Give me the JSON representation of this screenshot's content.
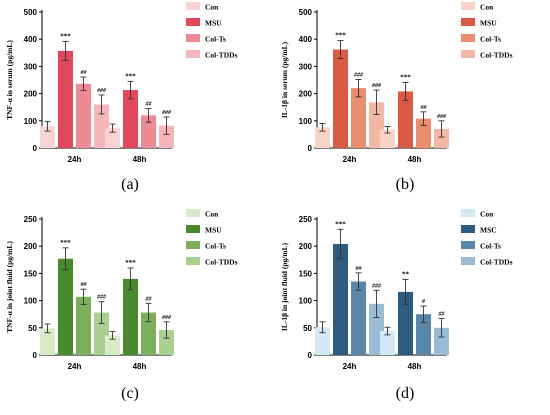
{
  "chart_data": [
    {
      "type": "bar",
      "panel_label": "(a)",
      "ylabel": "TNF-α in serum (pg/mL)",
      "ylim": [
        0,
        500
      ],
      "yticks": [
        0,
        100,
        200,
        300,
        400,
        500
      ],
      "categories": [
        "24h",
        "48h"
      ],
      "colors": [
        "#f8d3d4",
        "#e0485b",
        "#ee8a93",
        "#f6b5b9"
      ],
      "series": [
        {
          "name": "Con",
          "values": [
            80,
            73
          ],
          "errors": [
            18,
            15
          ],
          "sig": [
            "",
            ""
          ]
        },
        {
          "name": "MSU",
          "values": [
            357,
            213
          ],
          "errors": [
            35,
            32
          ],
          "sig": [
            "***",
            "***"
          ]
        },
        {
          "name": "Col-Ts",
          "values": [
            236,
            120
          ],
          "errors": [
            25,
            25
          ],
          "sig": [
            "##",
            "##"
          ]
        },
        {
          "name": "Col-TDDs",
          "values": [
            160,
            82
          ],
          "errors": [
            35,
            32
          ],
          "sig": [
            "###",
            "###"
          ]
        }
      ]
    },
    {
      "type": "bar",
      "panel_label": "(b)",
      "ylabel": "IL-1β in serum (pg/mL)",
      "ylim": [
        0,
        500
      ],
      "yticks": [
        0,
        100,
        200,
        300,
        400,
        500
      ],
      "categories": [
        "24h",
        "48h"
      ],
      "colors": [
        "#f9d3c8",
        "#db5a43",
        "#e88d6e",
        "#f2b8a5"
      ],
      "series": [
        {
          "name": "Con",
          "values": [
            76,
            67
          ],
          "errors": [
            14,
            12
          ],
          "sig": [
            "",
            ""
          ]
        },
        {
          "name": "MSU",
          "values": [
            362,
            208
          ],
          "errors": [
            33,
            33
          ],
          "sig": [
            "***",
            "***"
          ]
        },
        {
          "name": "Col-Ts",
          "values": [
            220,
            108
          ],
          "errors": [
            32,
            25
          ],
          "sig": [
            "###",
            "##"
          ]
        },
        {
          "name": "Col-TDDs",
          "values": [
            168,
            70
          ],
          "errors": [
            45,
            30
          ],
          "sig": [
            "###",
            "###"
          ]
        }
      ]
    },
    {
      "type": "bar",
      "panel_label": "(c)",
      "ylabel": "TNF-α in joint fluid (pg/mL)",
      "ylim": [
        0,
        250
      ],
      "yticks": [
        0,
        50,
        100,
        150,
        200,
        250
      ],
      "categories": [
        "24h",
        "48h"
      ],
      "colors": [
        "#d7ebc6",
        "#4a8a2e",
        "#7cae5c",
        "#a9d08f"
      ],
      "series": [
        {
          "name": "Con",
          "values": [
            49,
            36
          ],
          "errors": [
            8,
            7
          ],
          "sig": [
            "",
            ""
          ]
        },
        {
          "name": "MSU",
          "values": [
            177,
            140
          ],
          "errors": [
            20,
            20
          ],
          "sig": [
            "***",
            "***"
          ]
        },
        {
          "name": "Col-Ts",
          "values": [
            107,
            78
          ],
          "errors": [
            14,
            17
          ],
          "sig": [
            "##",
            "##"
          ]
        },
        {
          "name": "Col-TDDs",
          "values": [
            78,
            46
          ],
          "errors": [
            20,
            15
          ],
          "sig": [
            "###",
            "###"
          ]
        }
      ]
    },
    {
      "type": "bar",
      "panel_label": "(d)",
      "ylabel": "IL-1β in joint fluid (pg/mL)",
      "ylim": [
        0,
        250
      ],
      "yticks": [
        0,
        50,
        100,
        150,
        200,
        250
      ],
      "categories": [
        "24h",
        "48h"
      ],
      "colors": [
        "#d4e8f5",
        "#2e5c80",
        "#5a86aa",
        "#9bbad4"
      ],
      "series": [
        {
          "name": "Con",
          "values": [
            51,
            44
          ],
          "errors": [
            10,
            7
          ],
          "sig": [
            "",
            ""
          ]
        },
        {
          "name": "MSC",
          "values": [
            204,
            116
          ],
          "errors": [
            27,
            23
          ],
          "sig": [
            "***",
            "**"
          ]
        },
        {
          "name": "Col-Ts",
          "values": [
            135,
            75
          ],
          "errors": [
            16,
            15
          ],
          "sig": [
            "##",
            "#"
          ]
        },
        {
          "name": "Col-TDDs",
          "values": [
            94,
            50
          ],
          "errors": [
            25,
            17
          ],
          "sig": [
            "###",
            "##"
          ]
        }
      ]
    }
  ]
}
